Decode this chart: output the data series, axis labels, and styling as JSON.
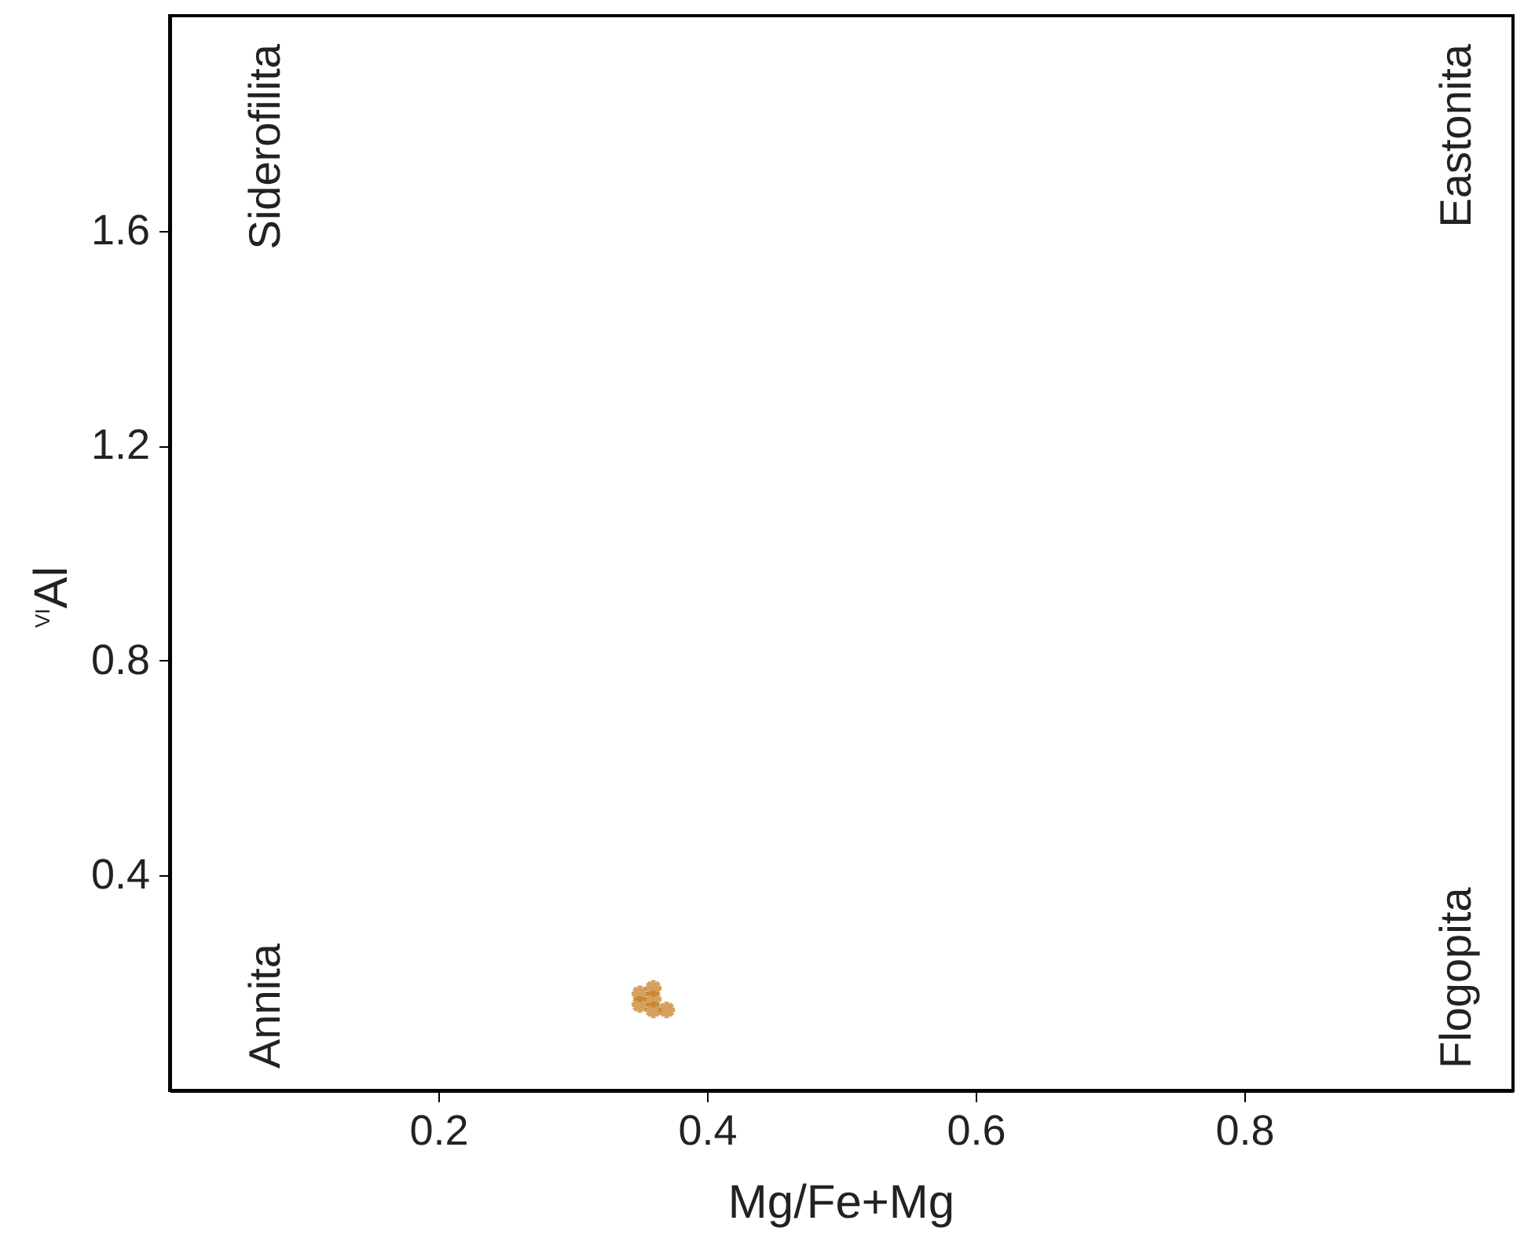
{
  "chart_data": {
    "type": "scatter",
    "xlabel": "Mg/Fe+Mg",
    "ylabel": "$^{VI}$Al",
    "x": [
      0.35,
      0.36,
      0.36,
      0.37,
      0.35,
      0.36
    ],
    "values": [
      0.18,
      0.19,
      0.17,
      0.15,
      0.16,
      0.15
    ],
    "color": "#c47a1c",
    "marker": "cross",
    "xlim": [
      0,
      1
    ],
    "xticks": [
      0.2,
      0.4,
      0.6,
      0.8
    ],
    "ylim": [
      0,
      2
    ],
    "yticks": [
      0.4,
      0.8,
      1.2,
      1.6
    ],
    "grid": false,
    "annotations": [
      "Siderofilita",
      "Eastonita",
      "Annita",
      "Flogopita"
    ]
  }
}
